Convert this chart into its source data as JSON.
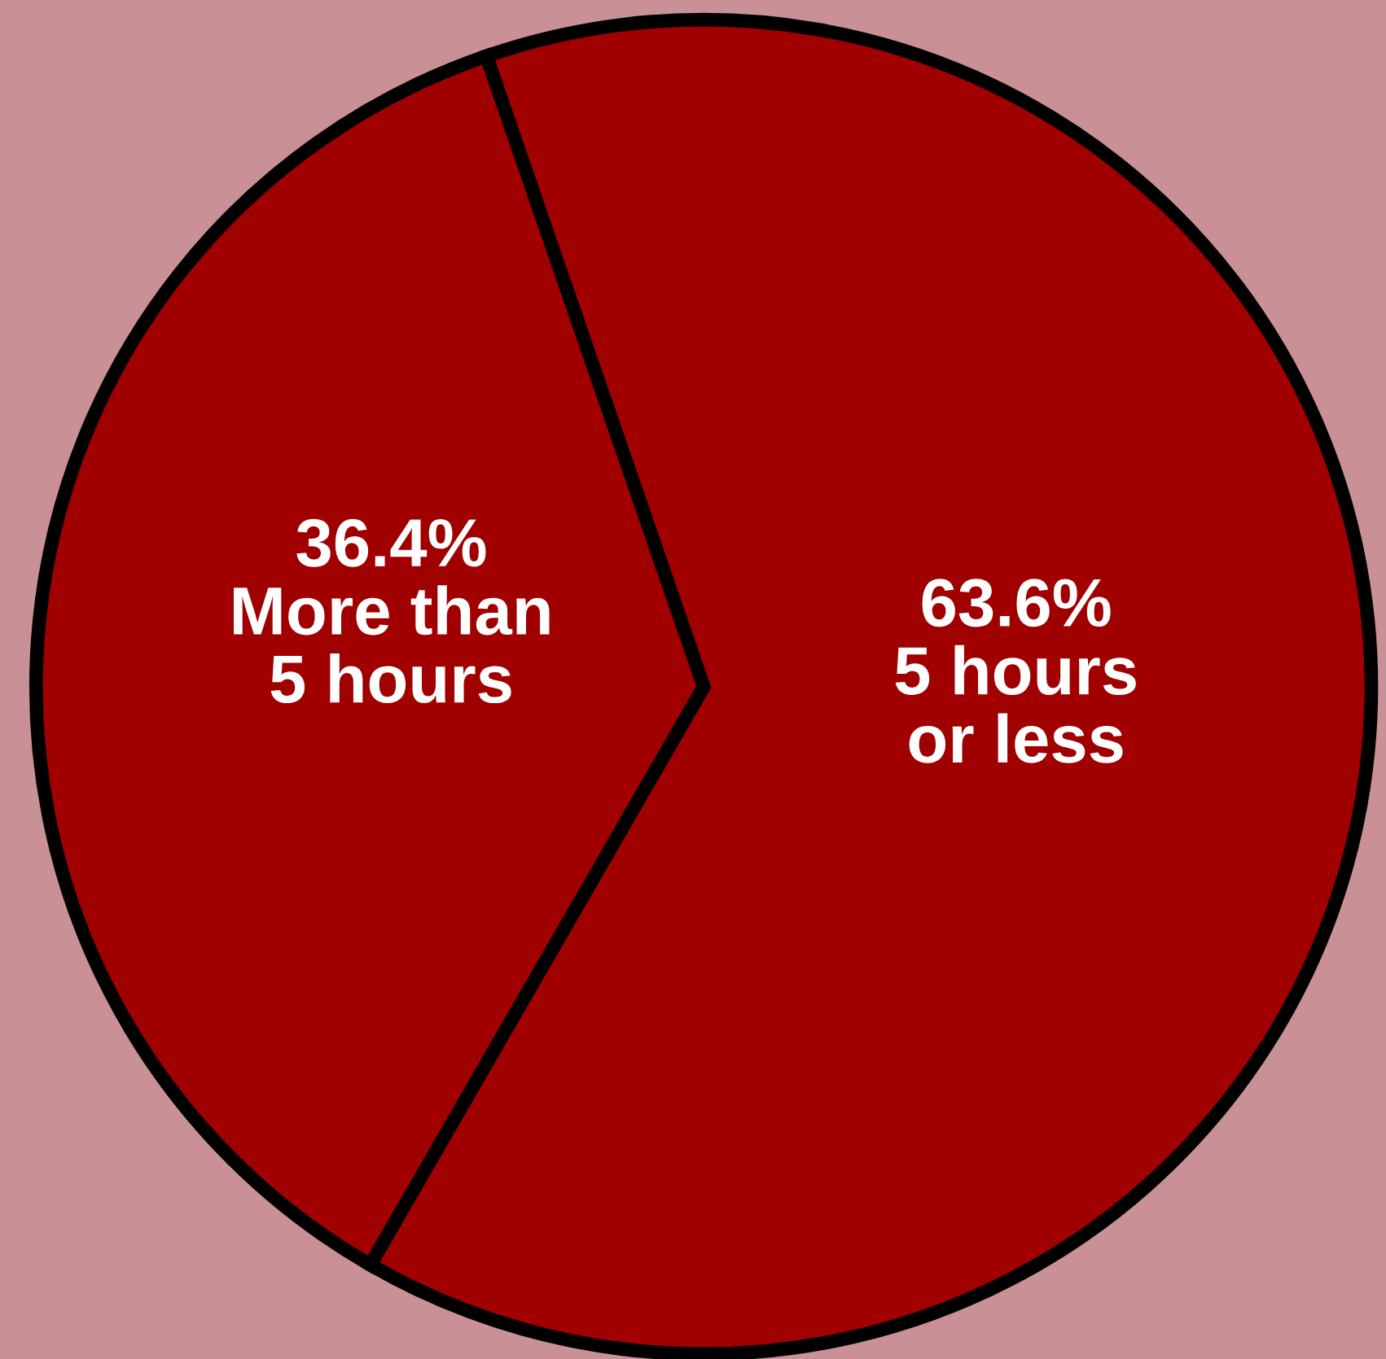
{
  "chart_data": {
    "type": "pie",
    "categories": [
      "5 hours\nor less",
      "More than\n5 hours"
    ],
    "values": [
      63.6,
      36.4
    ],
    "value_labels": [
      "63.6%",
      "36.4%"
    ],
    "colors": [
      "#a00000",
      "#a00000"
    ],
    "legend": false
  }
}
